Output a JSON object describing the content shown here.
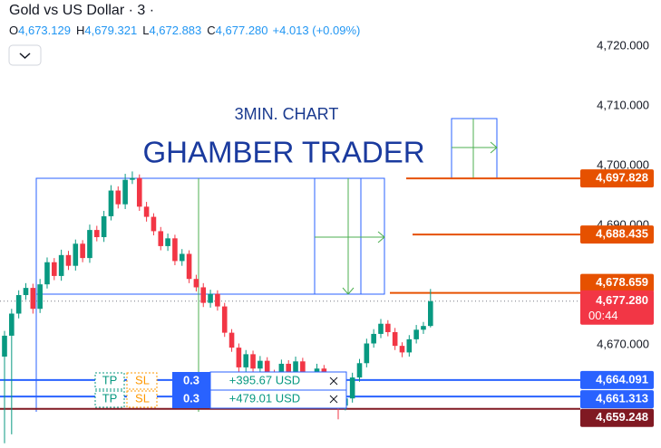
{
  "chart_data": {
    "type": "candlestick",
    "title": "Gold vs US Dollar · 3 ·",
    "ohlc": [
      {
        "label": "O",
        "value": "4,673.129"
      },
      {
        "label": "H",
        "value": "4,679.321"
      },
      {
        "label": "L",
        "value": "4,672.883"
      },
      {
        "label": "C",
        "value": "4,677.280"
      }
    ],
    "change": "+4.013 (+0.09%)",
    "annotations": [
      "3MIN. CHART",
      "GHAMBER TRADER"
    ],
    "up_color": "#089981",
    "down_color": "#f23645",
    "open": [
      4668.0,
      4671.5,
      4675.2,
      4678.3,
      4679.5,
      4676.0,
      4680.1,
      4683.8,
      4681.5,
      4685.0,
      4683.2,
      4686.9,
      4684.5,
      4689.2,
      4688.0,
      4691.5,
      4695.8,
      4693.5,
      4697.6,
      4697.9,
      4693.1,
      4691.4,
      4689.0,
      4686.5,
      4687.8,
      4684.0,
      4685.2,
      4681.0,
      4679.6,
      4677.0,
      4678.5,
      4676.4,
      4672.0,
      4669.5,
      4666.2,
      4668.4,
      4666.0,
      4667.3,
      4665.1,
      4664.0,
      4666.8,
      4665.5,
      4667.2,
      4664.8,
      4663.9,
      4666.0,
      4663.0,
      4662.2,
      4659.8,
      4661.0,
      4664.5,
      4666.9,
      4670.2,
      4671.8,
      4673.5,
      4672.1,
      4669.8,
      4668.7,
      4670.9,
      4672.5,
      4673.129
    ],
    "high": [
      4672.3,
      4676.0,
      4679.1,
      4680.3,
      4680.2,
      4681.0,
      4684.6,
      4684.5,
      4685.9,
      4685.7,
      4687.6,
      4687.5,
      4690.1,
      4689.9,
      4692.4,
      4696.7,
      4696.5,
      4698.6,
      4699.0,
      4698.5,
      4693.9,
      4692.0,
      4689.7,
      4688.6,
      4688.4,
      4686.0,
      4685.8,
      4681.7,
      4680.3,
      4679.2,
      4679.1,
      4677.0,
      4672.6,
      4670.2,
      4669.1,
      4669.0,
      4668.1,
      4667.9,
      4665.8,
      4667.5,
      4667.4,
      4668.0,
      4667.8,
      4665.5,
      4666.8,
      4666.6,
      4663.7,
      4662.9,
      4661.7,
      4665.3,
      4667.6,
      4671.0,
      4672.6,
      4674.3,
      4674.1,
      4672.8,
      4670.4,
      4671.6,
      4673.3,
      4673.8,
      4679.321
    ],
    "low": [
      4653.5,
      4655.0,
      4674.4,
      4677.5,
      4675.2,
      4675.3,
      4679.4,
      4680.8,
      4680.7,
      4682.5,
      4682.4,
      4683.8,
      4683.7,
      4687.3,
      4687.2,
      4690.8,
      4692.8,
      4692.7,
      4696.9,
      4692.4,
      4690.6,
      4688.3,
      4685.8,
      4685.7,
      4683.3,
      4683.2,
      4680.3,
      4678.9,
      4676.3,
      4676.2,
      4675.7,
      4671.3,
      4668.8,
      4665.5,
      4665.4,
      4665.3,
      4665.2,
      4664.4,
      4663.3,
      4663.2,
      4664.8,
      4664.7,
      4664.1,
      4663.2,
      4663.1,
      4662.3,
      4661.5,
      4657.5,
      4659.0,
      4660.3,
      4663.8,
      4666.2,
      4669.5,
      4671.1,
      4671.4,
      4669.1,
      4667.9,
      4668.0,
      4670.2,
      4671.8,
      4672.883
    ],
    "close": [
      4671.5,
      4675.2,
      4678.3,
      4679.5,
      4676.0,
      4680.1,
      4683.8,
      4681.5,
      4685.0,
      4683.2,
      4686.9,
      4684.5,
      4689.2,
      4688.0,
      4691.5,
      4695.8,
      4693.5,
      4697.6,
      4697.9,
      4693.1,
      4691.4,
      4689.0,
      4686.5,
      4687.8,
      4684.0,
      4685.2,
      4681.0,
      4679.6,
      4677.0,
      4678.5,
      4676.4,
      4672.0,
      4669.5,
      4666.2,
      4668.4,
      4666.0,
      4667.3,
      4665.1,
      4664.0,
      4666.8,
      4665.5,
      4667.2,
      4664.8,
      4663.9,
      4666.0,
      4663.0,
      4662.2,
      4659.8,
      4661.0,
      4664.5,
      4666.9,
      4670.2,
      4671.8,
      4673.5,
      4672.1,
      4669.8,
      4668.7,
      4670.9,
      4672.5,
      4673.129,
      4677.28
    ],
    "ylim": [
      4652.7,
      4727.7
    ],
    "yticks": [
      {
        "value": 4720,
        "label": "4,720.000"
      },
      {
        "value": 4710,
        "label": "4,710.000"
      },
      {
        "value": 4700,
        "label": "4,700.000"
      },
      {
        "value": 4690,
        "label": "4,690.000"
      },
      {
        "value": 4670,
        "label": "4,670.000"
      }
    ],
    "price_lines": [
      {
        "value": 4697.828,
        "label": "4,697.828",
        "color": "#e65100"
      },
      {
        "value": 4688.435,
        "label": "4,688.435",
        "color": "#e65100"
      },
      {
        "value": 4678.659,
        "label": "4,678.659",
        "color": "#e65100"
      },
      {
        "value": 4677.28,
        "label": "4,677.280",
        "color": "#f23645"
      },
      {
        "value": 4664.091,
        "label": "4,664.091",
        "color": "#2962ff"
      },
      {
        "value": 4661.313,
        "label": "4,661.313",
        "color": "#2962ff"
      },
      {
        "value": 4659.248,
        "label": "4,659.248",
        "color": "#801922"
      }
    ],
    "countdown": "00:44",
    "orders": [
      {
        "tp": "TP",
        "sl": "SL",
        "qty": "0.3",
        "pnl": "+395.67 USD"
      },
      {
        "tp": "TP",
        "sl": "SL",
        "qty": "0.3",
        "pnl": "+479.01 USD"
      }
    ]
  }
}
